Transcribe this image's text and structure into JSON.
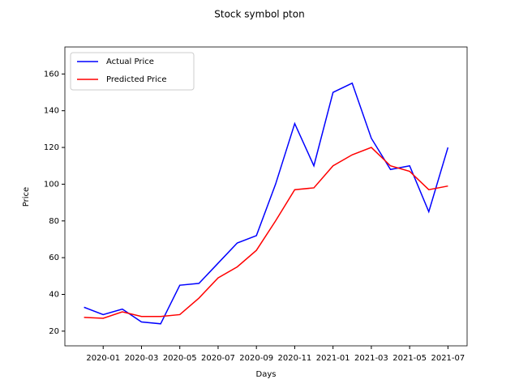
{
  "chart_data": {
    "type": "line",
    "title": "Stock symbol pton",
    "x_label": "Days",
    "y_label": "Price",
    "x": [
      "2019-12",
      "2020-01",
      "2020-02",
      "2020-03",
      "2020-04",
      "2020-05",
      "2020-06",
      "2020-07",
      "2020-08",
      "2020-09",
      "2020-10",
      "2020-11",
      "2020-12",
      "2021-01",
      "2021-02",
      "2021-03",
      "2021-04",
      "2021-05",
      "2021-06",
      "2021-07"
    ],
    "series": [
      {
        "name": "Actual Price",
        "color": "#0000ff",
        "values": [
          33,
          29,
          32,
          25,
          24,
          45,
          46,
          57,
          68,
          72,
          100,
          133,
          110,
          150,
          155,
          125,
          108,
          110,
          85,
          120
        ]
      },
      {
        "name": "Predicted Price",
        "color": "#ff0000",
        "values": [
          27.5,
          27,
          30.5,
          28,
          28,
          29,
          38,
          49,
          55,
          64,
          80,
          97,
          98,
          110,
          116,
          120,
          110,
          107,
          97,
          99
        ]
      }
    ],
    "xlim": [
      "2019-11",
      "2021-08"
    ],
    "xticks": [
      "2020-01",
      "2020-03",
      "2020-05",
      "2020-07",
      "2020-09",
      "2020-11",
      "2021-01",
      "2021-03",
      "2021-05",
      "2021-07"
    ],
    "ylim": [
      12,
      174.7
    ],
    "yticks": [
      20,
      40,
      60,
      80,
      100,
      120,
      140,
      160
    ],
    "legend": "upper left"
  }
}
